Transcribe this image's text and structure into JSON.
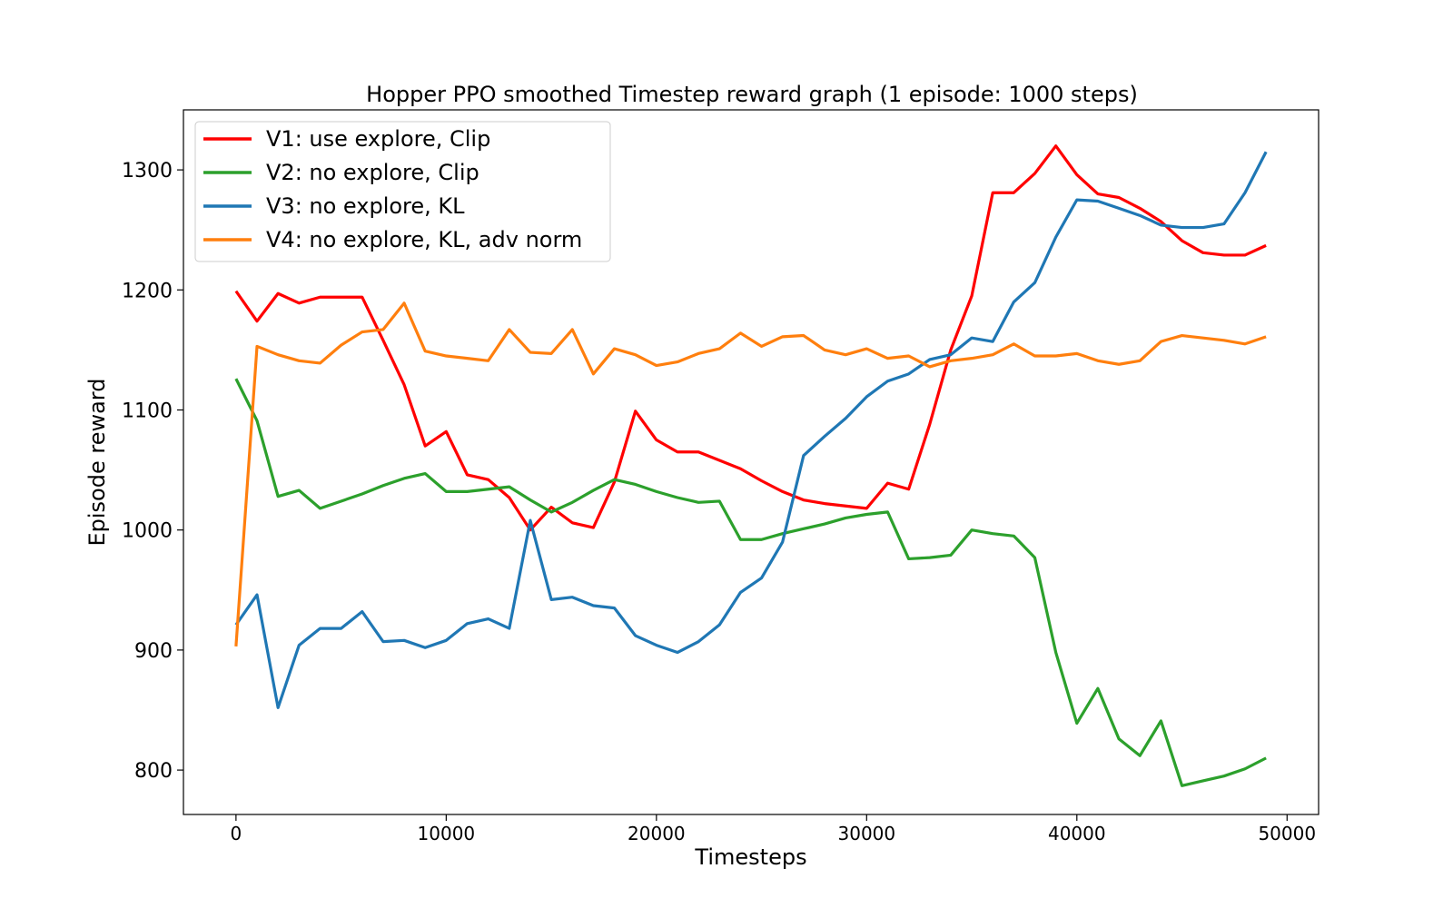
{
  "chart_data": {
    "type": "line",
    "title": "Hopper PPO smoothed Timestep reward graph (1 episode: 1000 steps)",
    "xlabel": "Timesteps",
    "ylabel": "Episode reward",
    "xlim": [
      -2500,
      51500
    ],
    "ylim": [
      763,
      1350
    ],
    "xticks": [
      0,
      10000,
      20000,
      30000,
      40000,
      50000
    ],
    "yticks": [
      800,
      900,
      1000,
      1100,
      1200,
      1300
    ],
    "grid": false,
    "legend_position": "top-left",
    "x": [
      0,
      1000,
      2000,
      3000,
      4000,
      5000,
      6000,
      7000,
      8000,
      9000,
      10000,
      11000,
      12000,
      13000,
      14000,
      15000,
      16000,
      17000,
      18000,
      19000,
      20000,
      21000,
      22000,
      23000,
      24000,
      25000,
      26000,
      27000,
      28000,
      29000,
      30000,
      31000,
      32000,
      33000,
      34000,
      35000,
      36000,
      37000,
      38000,
      39000,
      40000,
      41000,
      42000,
      43000,
      44000,
      45000,
      46000,
      47000,
      48000,
      49000
    ],
    "series": [
      {
        "name": "V1: use explore, Clip",
        "color": "#ff0000",
        "values": [
          1199,
          1174,
          1197,
          1189,
          1194,
          1194,
          1194,
          1158,
          1121,
          1070,
          1082,
          1046,
          1042,
          1027,
          1000,
          1019,
          1006,
          1002,
          1040,
          1099,
          1075,
          1065,
          1065,
          1058,
          1051,
          1041,
          1032,
          1025,
          1022,
          1020,
          1018,
          1039,
          1034,
          1088,
          1150,
          1195,
          1281,
          1281,
          1297,
          1320,
          1296,
          1280,
          1277,
          1268,
          1257,
          1241,
          1231,
          1229,
          1229,
          1237
        ]
      },
      {
        "name": "V2: no explore, Clip",
        "color": "#2ca02c",
        "values": [
          1126,
          1091,
          1028,
          1033,
          1018,
          1024,
          1030,
          1037,
          1043,
          1047,
          1032,
          1032,
          1034,
          1036,
          1025,
          1015,
          1023,
          1033,
          1042,
          1038,
          1032,
          1027,
          1023,
          1024,
          992,
          992,
          997,
          1001,
          1005,
          1010,
          1013,
          1015,
          976,
          977,
          979,
          1000,
          997,
          995,
          977,
          898,
          839,
          868,
          826,
          812,
          841,
          787,
          791,
          795,
          801,
          810
        ]
      },
      {
        "name": "V3: no explore, KL",
        "color": "#1f77b4",
        "values": [
          921,
          946,
          852,
          904,
          918,
          918,
          932,
          907,
          908,
          902,
          908,
          922,
          926,
          918,
          1008,
          942,
          944,
          937,
          935,
          912,
          904,
          898,
          907,
          921,
          948,
          960,
          990,
          1062,
          1078,
          1093,
          1111,
          1124,
          1130,
          1142,
          1146,
          1160,
          1157,
          1190,
          1206,
          1244,
          1275,
          1274,
          1268,
          1262,
          1254,
          1252,
          1252,
          1255,
          1281,
          1315
        ]
      },
      {
        "name": "V4: no explore, KL, adv norm",
        "color": "#ff7f0e",
        "values": [
          903,
          1153,
          1146,
          1141,
          1139,
          1154,
          1165,
          1167,
          1189,
          1149,
          1145,
          1143,
          1141,
          1167,
          1148,
          1147,
          1167,
          1130,
          1151,
          1146,
          1137,
          1140,
          1147,
          1151,
          1164,
          1153,
          1161,
          1162,
          1150,
          1146,
          1151,
          1143,
          1145,
          1136,
          1141,
          1143,
          1146,
          1155,
          1145,
          1145,
          1147,
          1141,
          1138,
          1141,
          1157,
          1162,
          1160,
          1158,
          1155,
          1161
        ]
      }
    ]
  }
}
